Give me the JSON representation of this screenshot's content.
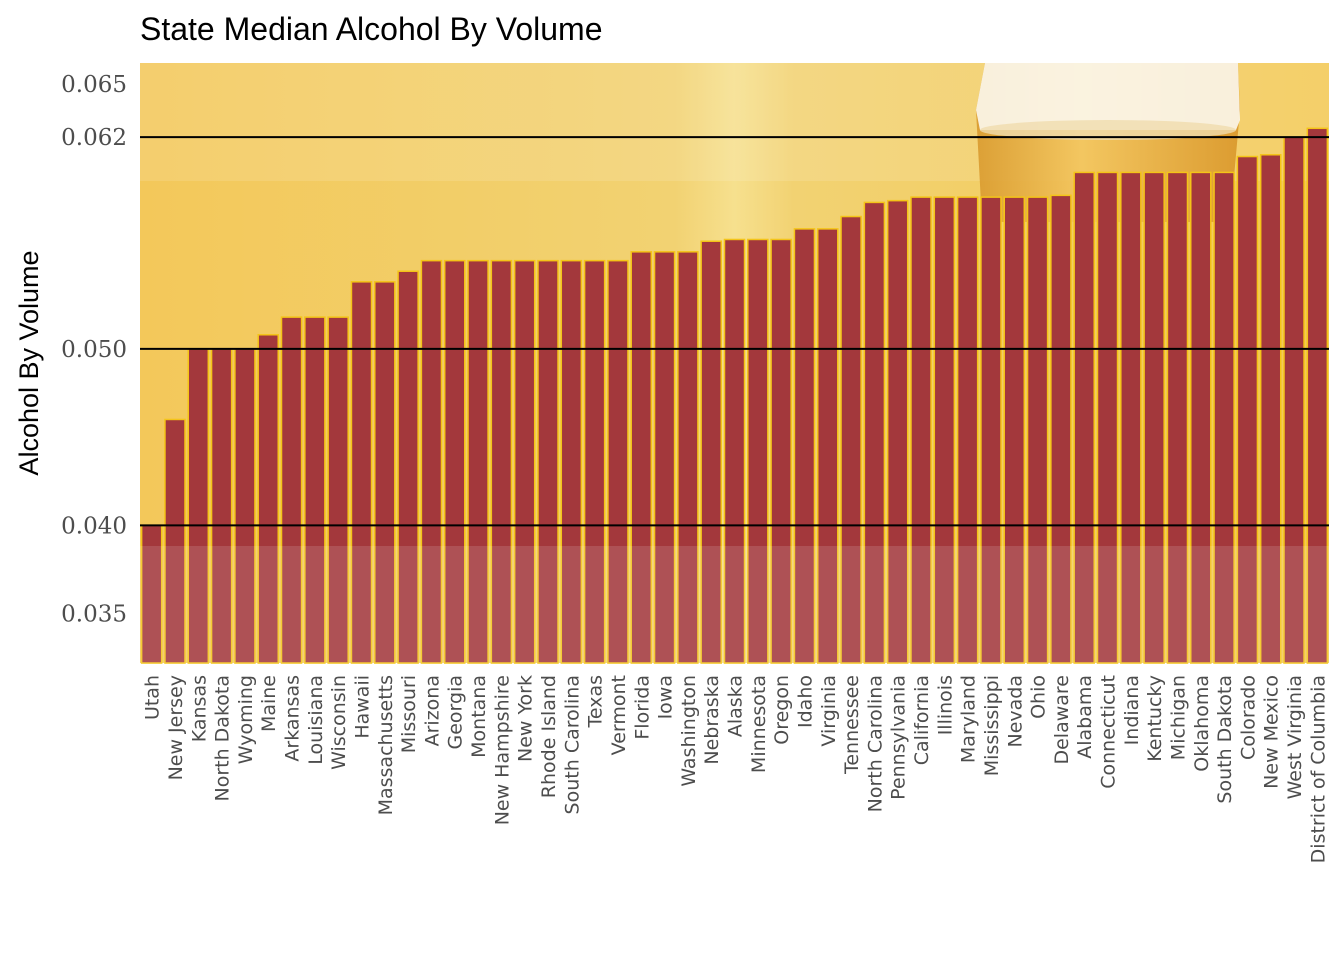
{
  "chart_data": {
    "type": "bar",
    "title": "State Median Alcohol By Volume",
    "ylabel": "Alcohol By Volume",
    "xlabel": "",
    "ylim": [
      0.0322,
      0.0662
    ],
    "yticks": [
      0.035,
      0.04,
      0.05,
      0.062,
      0.065
    ],
    "ytick_labels": [
      "0.035",
      "0.040",
      "0.050",
      "0.062",
      "0.065"
    ],
    "reference_lines": [
      0.04,
      0.05,
      0.062
    ],
    "categories": [
      "Utah",
      "New Jersey",
      "Kansas",
      "North Dakota",
      "Wyoming",
      "Maine",
      "Arkansas",
      "Louisiana",
      "Wisconsin",
      "Hawaii",
      "Massachusetts",
      "Missouri",
      "Arizona",
      "Georgia",
      "Montana",
      "New Hampshire",
      "New York",
      "Rhode Island",
      "South Carolina",
      "Texas",
      "Vermont",
      "Florida",
      "Iowa",
      "Washington",
      "Nebraska",
      "Alaska",
      "Minnesota",
      "Oregon",
      "Idaho",
      "Virginia",
      "Tennessee",
      "North Carolina",
      "Pennsylvania",
      "California",
      "Illinois",
      "Maryland",
      "Mississippi",
      "Nevada",
      "Ohio",
      "Delaware",
      "Alabama",
      "Connecticut",
      "Indiana",
      "Kentucky",
      "Michigan",
      "Oklahoma",
      "South Dakota",
      "Colorado",
      "New Mexico",
      "West Virginia",
      "District of Columbia"
    ],
    "values": [
      0.04,
      0.046,
      0.05,
      0.05,
      0.05,
      0.0508,
      0.0518,
      0.0518,
      0.0518,
      0.0538,
      0.0538,
      0.0544,
      0.055,
      0.055,
      0.055,
      0.055,
      0.055,
      0.055,
      0.055,
      0.055,
      0.055,
      0.0555,
      0.0555,
      0.0555,
      0.0561,
      0.0562,
      0.0562,
      0.0562,
      0.0568,
      0.0568,
      0.0575,
      0.0583,
      0.0584,
      0.0586,
      0.0586,
      0.0586,
      0.0586,
      0.0586,
      0.0586,
      0.0587,
      0.06,
      0.06,
      0.06,
      0.06,
      0.06,
      0.06,
      0.06,
      0.0609,
      0.061,
      0.062,
      0.0625
    ],
    "colors": {
      "bar_fill": "#a3383c",
      "bar_stroke": "#f4c418",
      "background": "#f2cd5e",
      "reference_line": "#000000"
    },
    "grid": false
  }
}
